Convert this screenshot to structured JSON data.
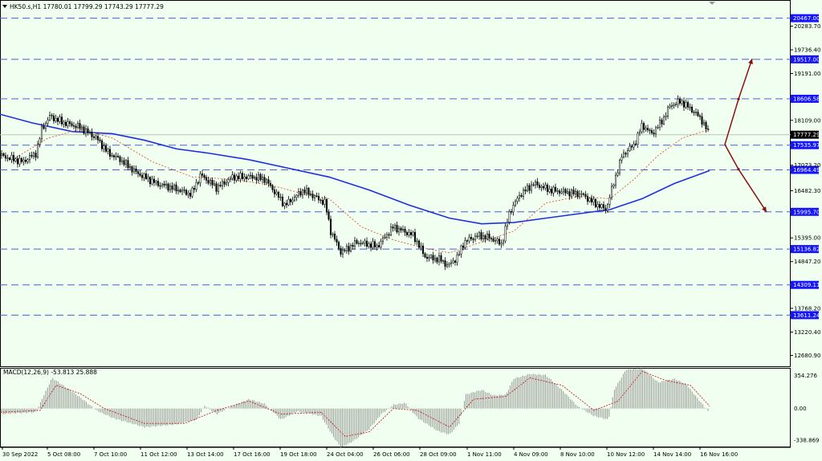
{
  "header": {
    "title": "HK50.s,H1  17780.01 17799.29 17743.29 17777.29",
    "macd_title": "MACD(12,26,9) -53.813 25.888"
  },
  "chart_data": {
    "type": "candlestick",
    "symbol": "HK50.s",
    "timeframe": "H1",
    "ohlc_last": {
      "open": 17780.01,
      "high": 17799.29,
      "low": 17743.29,
      "close": 17777.29
    },
    "price_ticks": [
      "20283.70",
      "19736.40",
      "19191.00",
      "18109.00",
      "17073.20",
      "16482.30",
      "15395.00",
      "14847.20",
      "13768.20",
      "13220.40",
      "12680.90"
    ],
    "price_ylim": [
      12450,
      20850
    ],
    "levels": [
      {
        "label": "20467.00",
        "value": 20467
      },
      {
        "label": "19517.00",
        "value": 19517
      },
      {
        "label": "18606.58",
        "value": 18606.58
      },
      {
        "label": "17535.97",
        "value": 17535.97
      },
      {
        "label": "16964.49",
        "value": 16964.49
      },
      {
        "label": "15995.70",
        "value": 15995.7
      },
      {
        "label": "15136.82",
        "value": 15136.82
      },
      {
        "label": "14309.11",
        "value": 14309.11
      },
      {
        "label": "13611.24",
        "value": 13611.24
      }
    ],
    "current_price": "17777.29",
    "x_labels": [
      "30 Sep 2022",
      "5 Oct 08:00",
      "7 Oct 10:00",
      "11 Oct 12:00",
      "13 Oct 14:00",
      "17 Oct 16:00",
      "19 Oct 18:00",
      "24 Oct 04:00",
      "26 Oct 06:00",
      "28 Oct 09:00",
      "1 Nov 11:00",
      "4 Nov 09:00",
      "8 Nov 10:00",
      "10 Nov 12:00",
      "14 Nov 14:00",
      "16 Nov 16:00"
    ],
    "close_path": [
      {
        "x": 0,
        "y": 17300
      },
      {
        "x": 28,
        "y": 17150
      },
      {
        "x": 45,
        "y": 17350
      },
      {
        "x": 52,
        "y": 17900
      },
      {
        "x": 62,
        "y": 18200
      },
      {
        "x": 80,
        "y": 18050
      },
      {
        "x": 100,
        "y": 17950
      },
      {
        "x": 120,
        "y": 17700
      },
      {
        "x": 135,
        "y": 17350
      },
      {
        "x": 150,
        "y": 17200
      },
      {
        "x": 170,
        "y": 16900
      },
      {
        "x": 195,
        "y": 16650
      },
      {
        "x": 215,
        "y": 16550
      },
      {
        "x": 238,
        "y": 16400
      },
      {
        "x": 250,
        "y": 16850
      },
      {
        "x": 270,
        "y": 16550
      },
      {
        "x": 290,
        "y": 16800
      },
      {
        "x": 315,
        "y": 16800
      },
      {
        "x": 330,
        "y": 16750
      },
      {
        "x": 355,
        "y": 16150
      },
      {
        "x": 378,
        "y": 16500
      },
      {
        "x": 405,
        "y": 16200
      },
      {
        "x": 412,
        "y": 15550
      },
      {
        "x": 425,
        "y": 15050
      },
      {
        "x": 445,
        "y": 15300
      },
      {
        "x": 470,
        "y": 15200
      },
      {
        "x": 490,
        "y": 15650
      },
      {
        "x": 515,
        "y": 15450
      },
      {
        "x": 530,
        "y": 14950
      },
      {
        "x": 548,
        "y": 14900
      },
      {
        "x": 558,
        "y": 14750
      },
      {
        "x": 570,
        "y": 14950
      },
      {
        "x": 578,
        "y": 15300
      },
      {
        "x": 595,
        "y": 15450
      },
      {
        "x": 610,
        "y": 15400
      },
      {
        "x": 625,
        "y": 15250
      },
      {
        "x": 635,
        "y": 16000
      },
      {
        "x": 648,
        "y": 16400
      },
      {
        "x": 665,
        "y": 16650
      },
      {
        "x": 685,
        "y": 16500
      },
      {
        "x": 705,
        "y": 16450
      },
      {
        "x": 725,
        "y": 16400
      },
      {
        "x": 740,
        "y": 16200
      },
      {
        "x": 755,
        "y": 16050
      },
      {
        "x": 765,
        "y": 16700
      },
      {
        "x": 775,
        "y": 17300
      },
      {
        "x": 790,
        "y": 17550
      },
      {
        "x": 800,
        "y": 18000
      },
      {
        "x": 812,
        "y": 17800
      },
      {
        "x": 825,
        "y": 18100
      },
      {
        "x": 835,
        "y": 18450
      },
      {
        "x": 848,
        "y": 18550
      },
      {
        "x": 862,
        "y": 18350
      },
      {
        "x": 873,
        "y": 18150
      },
      {
        "x": 884,
        "y": 17777
      }
    ],
    "ma_red_path": [
      {
        "x": 20,
        "y": 17250
      },
      {
        "x": 60,
        "y": 17700
      },
      {
        "x": 100,
        "y": 17900
      },
      {
        "x": 140,
        "y": 17700
      },
      {
        "x": 190,
        "y": 17150
      },
      {
        "x": 240,
        "y": 16800
      },
      {
        "x": 290,
        "y": 16750
      },
      {
        "x": 340,
        "y": 16600
      },
      {
        "x": 380,
        "y": 16400
      },
      {
        "x": 410,
        "y": 16300
      },
      {
        "x": 450,
        "y": 15650
      },
      {
        "x": 490,
        "y": 15350
      },
      {
        "x": 530,
        "y": 15150
      },
      {
        "x": 560,
        "y": 15050
      },
      {
        "x": 600,
        "y": 15300
      },
      {
        "x": 640,
        "y": 15550
      },
      {
        "x": 680,
        "y": 16200
      },
      {
        "x": 720,
        "y": 16350
      },
      {
        "x": 760,
        "y": 16300
      },
      {
        "x": 790,
        "y": 16750
      },
      {
        "x": 820,
        "y": 17300
      },
      {
        "x": 850,
        "y": 17700
      },
      {
        "x": 884,
        "y": 17900
      }
    ],
    "ma_blue_path": [
      {
        "x": 0,
        "y": 18250
      },
      {
        "x": 40,
        "y": 18050
      },
      {
        "x": 90,
        "y": 17850
      },
      {
        "x": 140,
        "y": 17800
      },
      {
        "x": 180,
        "y": 17650
      },
      {
        "x": 220,
        "y": 17450
      },
      {
        "x": 260,
        "y": 17350
      },
      {
        "x": 310,
        "y": 17200
      },
      {
        "x": 360,
        "y": 17000
      },
      {
        "x": 410,
        "y": 16800
      },
      {
        "x": 460,
        "y": 16500
      },
      {
        "x": 510,
        "y": 16150
      },
      {
        "x": 560,
        "y": 15850
      },
      {
        "x": 600,
        "y": 15720
      },
      {
        "x": 640,
        "y": 15750
      },
      {
        "x": 680,
        "y": 15850
      },
      {
        "x": 720,
        "y": 15950
      },
      {
        "x": 760,
        "y": 16050
      },
      {
        "x": 800,
        "y": 16300
      },
      {
        "x": 840,
        "y": 16650
      },
      {
        "x": 884,
        "y": 16950
      }
    ],
    "projection_arrows": [
      {
        "points": [
          {
            "x": 903,
            "y": 17550
          },
          {
            "x": 920,
            "y": 18600
          },
          {
            "x": 937,
            "y": 19530
          }
        ]
      },
      {
        "points": [
          {
            "x": 903,
            "y": 17550
          },
          {
            "x": 920,
            "y": 16980
          },
          {
            "x": 955,
            "y": 15990
          }
        ]
      }
    ],
    "macd": {
      "ticks": [
        "354.276",
        "0.00",
        "-338.869"
      ],
      "ylim": [
        -400,
        420
      ],
      "hist_path": [
        {
          "x": 0,
          "y": -60
        },
        {
          "x": 45,
          "y": -40
        },
        {
          "x": 55,
          "y": 150
        },
        {
          "x": 65,
          "y": 330
        },
        {
          "x": 80,
          "y": 240
        },
        {
          "x": 100,
          "y": 120
        },
        {
          "x": 120,
          "y": -20
        },
        {
          "x": 140,
          "y": -100
        },
        {
          "x": 180,
          "y": -200
        },
        {
          "x": 220,
          "y": -170
        },
        {
          "x": 245,
          "y": -120
        },
        {
          "x": 255,
          "y": 30
        },
        {
          "x": 270,
          "y": -60
        },
        {
          "x": 290,
          "y": 30
        },
        {
          "x": 310,
          "y": 100
        },
        {
          "x": 330,
          "y": 50
        },
        {
          "x": 350,
          "y": -120
        },
        {
          "x": 370,
          "y": -30
        },
        {
          "x": 400,
          "y": -80
        },
        {
          "x": 415,
          "y": -300
        },
        {
          "x": 425,
          "y": -420
        },
        {
          "x": 440,
          "y": -350
        },
        {
          "x": 460,
          "y": -220
        },
        {
          "x": 475,
          "y": -60
        },
        {
          "x": 490,
          "y": 40
        },
        {
          "x": 505,
          "y": 60
        },
        {
          "x": 520,
          "y": -100
        },
        {
          "x": 545,
          "y": -240
        },
        {
          "x": 560,
          "y": -280
        },
        {
          "x": 572,
          "y": -160
        },
        {
          "x": 580,
          "y": 150
        },
        {
          "x": 600,
          "y": 200
        },
        {
          "x": 615,
          "y": 140
        },
        {
          "x": 630,
          "y": 150
        },
        {
          "x": 640,
          "y": 320
        },
        {
          "x": 660,
          "y": 370
        },
        {
          "x": 680,
          "y": 360
        },
        {
          "x": 700,
          "y": 200
        },
        {
          "x": 720,
          "y": 20
        },
        {
          "x": 740,
          "y": -80
        },
        {
          "x": 758,
          "y": -120
        },
        {
          "x": 765,
          "y": 200
        },
        {
          "x": 780,
          "y": 420
        },
        {
          "x": 800,
          "y": 430
        },
        {
          "x": 820,
          "y": 280
        },
        {
          "x": 840,
          "y": 320
        },
        {
          "x": 855,
          "y": 260
        },
        {
          "x": 870,
          "y": 100
        },
        {
          "x": 884,
          "y": -54
        }
      ],
      "signal_path": [
        {
          "x": 0,
          "y": -40
        },
        {
          "x": 50,
          "y": -20
        },
        {
          "x": 70,
          "y": 250
        },
        {
          "x": 100,
          "y": 160
        },
        {
          "x": 130,
          "y": 0
        },
        {
          "x": 180,
          "y": -160
        },
        {
          "x": 230,
          "y": -160
        },
        {
          "x": 270,
          "y": -20
        },
        {
          "x": 310,
          "y": 80
        },
        {
          "x": 350,
          "y": -60
        },
        {
          "x": 400,
          "y": -40
        },
        {
          "x": 430,
          "y": -300
        },
        {
          "x": 460,
          "y": -250
        },
        {
          "x": 490,
          "y": 0
        },
        {
          "x": 520,
          "y": -20
        },
        {
          "x": 560,
          "y": -200
        },
        {
          "x": 590,
          "y": 100
        },
        {
          "x": 630,
          "y": 130
        },
        {
          "x": 660,
          "y": 330
        },
        {
          "x": 700,
          "y": 250
        },
        {
          "x": 740,
          "y": -20
        },
        {
          "x": 770,
          "y": 80
        },
        {
          "x": 800,
          "y": 400
        },
        {
          "x": 830,
          "y": 300
        },
        {
          "x": 860,
          "y": 250
        },
        {
          "x": 884,
          "y": 26
        }
      ]
    }
  },
  "colors": {
    "background": "#f0fff0",
    "levels": "#4a5fd8",
    "ma_blue": "#1f2ee0",
    "ma_red": "#d85a3a",
    "candles": "#000000",
    "arrows": "#8b1010",
    "macd_hist": "#8a8a8a",
    "macd_signal": "#c0282a",
    "label_box": "#1414ff",
    "current_box": "#000000"
  }
}
